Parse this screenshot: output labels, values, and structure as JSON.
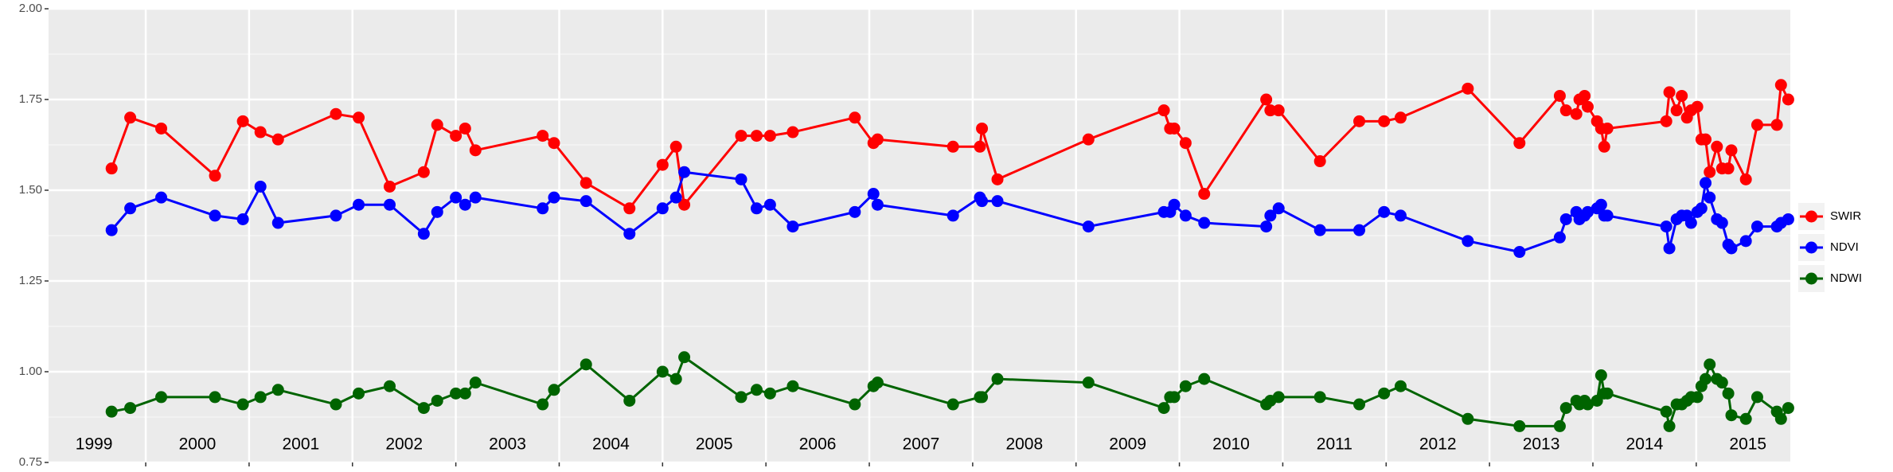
{
  "chart_data": {
    "type": "line",
    "x": [
      1999.67,
      1999.85,
      2000.15,
      2000.67,
      2000.94,
      2001.11,
      2001.28,
      2001.84,
      2002.06,
      2002.36,
      2002.69,
      2002.82,
      2003.0,
      2003.09,
      2003.19,
      2003.84,
      2003.95,
      2004.26,
      2004.68,
      2005.0,
      2005.13,
      2005.21,
      2005.76,
      2005.91,
      2006.04,
      2006.26,
      2006.86,
      2007.04,
      2007.08,
      2007.81,
      2008.07,
      2008.09,
      2008.24,
      2009.12,
      2009.85,
      2009.91,
      2009.95,
      2010.06,
      2010.24,
      2010.84,
      2010.88,
      2010.96,
      2011.36,
      2011.74,
      2011.98,
      2012.14,
      2012.79,
      2013.29,
      2013.68,
      2013.74,
      2013.84,
      2013.87,
      2013.92,
      2013.95,
      2014.04,
      2014.08,
      2014.11,
      2014.14,
      2014.71,
      2014.74,
      2014.81,
      2014.86,
      2014.91,
      2014.95,
      2015.01,
      2015.05,
      2015.09,
      2015.13,
      2015.2,
      2015.25,
      2015.31,
      2015.34,
      2015.48,
      2015.59,
      2015.78,
      2015.82,
      2015.89
    ],
    "series": [
      {
        "name": "SWIR",
        "color": "#ff0000",
        "values": [
          1.56,
          1.7,
          1.67,
          1.54,
          1.69,
          1.66,
          1.64,
          1.71,
          1.7,
          1.51,
          1.55,
          1.68,
          1.65,
          1.67,
          1.61,
          1.65,
          1.63,
          1.52,
          1.45,
          1.57,
          1.62,
          1.46,
          1.65,
          1.65,
          1.65,
          1.66,
          1.7,
          1.63,
          1.64,
          1.62,
          1.62,
          1.67,
          1.53,
          1.64,
          1.72,
          1.67,
          1.67,
          1.63,
          1.49,
          1.75,
          1.72,
          1.72,
          1.58,
          1.69,
          1.69,
          1.7,
          1.78,
          1.63,
          1.76,
          1.72,
          1.71,
          1.75,
          1.76,
          1.73,
          1.69,
          1.67,
          1.62,
          1.67,
          1.69,
          1.77,
          1.72,
          1.76,
          1.7,
          1.72,
          1.73,
          1.64,
          1.64,
          1.55,
          1.62,
          1.56,
          1.56,
          1.61,
          1.53,
          1.68,
          1.68,
          1.79,
          1.75
        ]
      },
      {
        "name": "NDVI",
        "color": "#0000ff",
        "values": [
          1.39,
          1.45,
          1.48,
          1.43,
          1.42,
          1.51,
          1.41,
          1.43,
          1.46,
          1.46,
          1.38,
          1.44,
          1.48,
          1.46,
          1.48,
          1.45,
          1.48,
          1.47,
          1.38,
          1.45,
          1.48,
          1.55,
          1.53,
          1.45,
          1.46,
          1.4,
          1.44,
          1.49,
          1.46,
          1.43,
          1.48,
          1.47,
          1.47,
          1.4,
          1.44,
          1.44,
          1.46,
          1.43,
          1.41,
          1.4,
          1.43,
          1.45,
          1.39,
          1.39,
          1.44,
          1.43,
          1.36,
          1.33,
          1.37,
          1.42,
          1.44,
          1.42,
          1.43,
          1.44,
          1.45,
          1.46,
          1.43,
          1.43,
          1.4,
          1.34,
          1.42,
          1.43,
          1.43,
          1.41,
          1.44,
          1.45,
          1.52,
          1.48,
          1.42,
          1.41,
          1.35,
          1.34,
          1.36,
          1.4,
          1.4,
          1.41,
          1.42
        ]
      },
      {
        "name": "NDWI",
        "color": "#006400",
        "values": [
          0.89,
          0.9,
          0.93,
          0.93,
          0.91,
          0.93,
          0.95,
          0.91,
          0.94,
          0.96,
          0.9,
          0.92,
          0.94,
          0.94,
          0.97,
          0.91,
          0.95,
          1.02,
          0.92,
          1.0,
          0.98,
          1.04,
          0.93,
          0.95,
          0.94,
          0.96,
          0.91,
          0.96,
          0.97,
          0.91,
          0.93,
          0.93,
          0.98,
          0.97,
          0.9,
          0.93,
          0.93,
          0.96,
          0.98,
          0.91,
          0.92,
          0.93,
          0.93,
          0.91,
          0.94,
          0.96,
          0.87,
          0.85,
          0.85,
          0.9,
          0.92,
          0.91,
          0.92,
          0.91,
          0.92,
          0.99,
          0.94,
          0.94,
          0.89,
          0.85,
          0.91,
          0.91,
          0.92,
          0.93,
          0.93,
          0.96,
          0.98,
          1.02,
          0.98,
          0.97,
          0.94,
          0.88,
          0.87,
          0.93,
          0.89,
          0.87,
          0.9
        ]
      }
    ],
    "xlim": [
      1999.06,
      2015.91
    ],
    "xticks": [
      2000,
      2001,
      2002,
      2003,
      2004,
      2005,
      2006,
      2007,
      2008,
      2009,
      2010,
      2011,
      2012,
      2013,
      2014,
      2015
    ],
    "ylim": [
      0.75,
      2.0
    ],
    "yticks": [
      {
        "value": 0.75,
        "label": "0.75"
      },
      {
        "value": 1.0,
        "label": "1.00"
      },
      {
        "value": 1.25,
        "label": "1.25"
      },
      {
        "value": 1.5,
        "label": "1.50"
      },
      {
        "value": 1.75,
        "label": "1.75"
      },
      {
        "value": 2.0,
        "label": "2.00"
      }
    ],
    "minor_yticks": [
      0.875,
      1.125,
      1.375,
      1.625,
      1.875
    ],
    "year_labels": [
      {
        "x": 1999.5,
        "label": "1999"
      },
      {
        "x": 2000.5,
        "label": "2000"
      },
      {
        "x": 2001.5,
        "label": "2001"
      },
      {
        "x": 2002.5,
        "label": "2002"
      },
      {
        "x": 2003.5,
        "label": "2003"
      },
      {
        "x": 2004.5,
        "label": "2004"
      },
      {
        "x": 2005.5,
        "label": "2005"
      },
      {
        "x": 2006.5,
        "label": "2006"
      },
      {
        "x": 2007.5,
        "label": "2007"
      },
      {
        "x": 2008.5,
        "label": "2008"
      },
      {
        "x": 2009.5,
        "label": "2009"
      },
      {
        "x": 2010.5,
        "label": "2010"
      },
      {
        "x": 2011.5,
        "label": "2011"
      },
      {
        "x": 2012.5,
        "label": "2012"
      },
      {
        "x": 2013.5,
        "label": "2013"
      },
      {
        "x": 2014.5,
        "label": "2014"
      },
      {
        "x": 2015.5,
        "label": "2015"
      }
    ],
    "grid": true,
    "legend": "right"
  }
}
